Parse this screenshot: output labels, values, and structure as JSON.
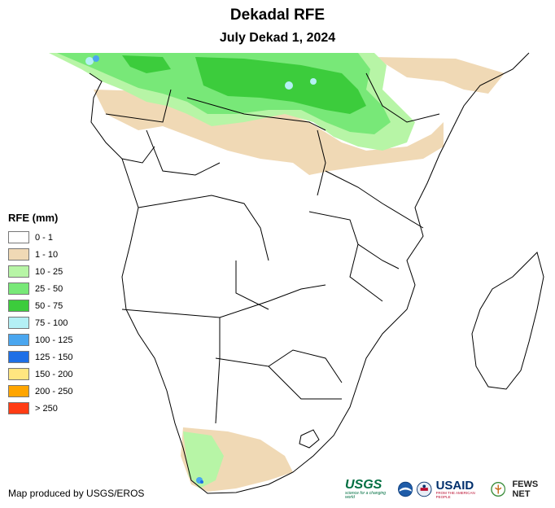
{
  "title": "Dekadal RFE",
  "subtitle": "July Dekad 1, 2024",
  "legend": {
    "title": "RFE (mm)",
    "items": [
      {
        "label": "0 - 1",
        "color": "#ffffff"
      },
      {
        "label": "1 - 10",
        "color": "#f0d9b5"
      },
      {
        "label": "10 - 25",
        "color": "#b7f5a6"
      },
      {
        "label": "25 - 50",
        "color": "#78e878"
      },
      {
        "label": "50 - 75",
        "color": "#3ccc3c"
      },
      {
        "label": "75 - 100",
        "color": "#b4f0f5"
      },
      {
        "label": "100 - 125",
        "color": "#4aa6ef"
      },
      {
        "label": "125 - 150",
        "color": "#1e6fe6"
      },
      {
        "label": "150 - 200",
        "color": "#ffe680"
      },
      {
        "label": "200 - 250",
        "color": "#ffa500"
      },
      {
        "label": "> 250",
        "color": "#ff3c14"
      }
    ]
  },
  "credit": "Map produced by USGS/EROS",
  "logos": {
    "usgs": "USGS",
    "usgs_tagline": "science for a changing world",
    "usaid": "USAID",
    "usaid_tagline": "FROM THE AMERICAN PEOPLE",
    "fews": "FEWS NET"
  },
  "colors": {
    "border": "#000000",
    "ocean": "#ffffff",
    "logo_green": "#006f41",
    "usaid_blue": "#002f6c",
    "noaa_blue": "#1f5ca8"
  }
}
